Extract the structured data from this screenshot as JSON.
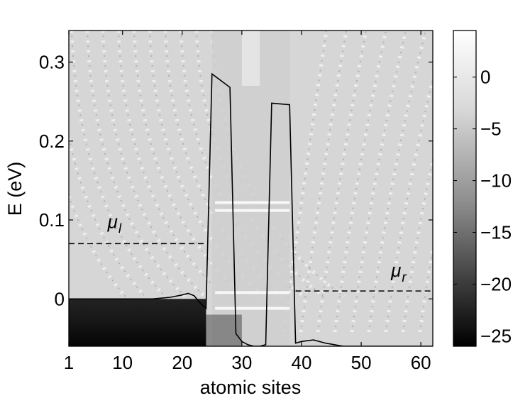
{
  "chart_data": {
    "type": "heatmap",
    "xlabel": "atomic sites",
    "ylabel": "E (eV)",
    "xlim": [
      1,
      62
    ],
    "ylim": [
      -0.06,
      0.34
    ],
    "x_ticks": [
      1,
      10,
      20,
      30,
      40,
      50,
      60
    ],
    "y_ticks": [
      0,
      0.1,
      0.2,
      0.3
    ],
    "y_tick_labels": [
      "0",
      "0.1",
      "0.2",
      "0.3"
    ],
    "colorbar": {
      "range": [
        -26,
        4.5
      ],
      "ticks": [
        0,
        -5,
        -10,
        -15,
        -20,
        -25
      ],
      "tick_labels": [
        "0",
        "−5",
        "−10",
        "−15",
        "−20",
        "−25"
      ],
      "colormap": "gray"
    },
    "band_profile": {
      "x": [
        1,
        5,
        10,
        15,
        18,
        20,
        21,
        22,
        23,
        24,
        25,
        28,
        29,
        30,
        31,
        32,
        33,
        34,
        35,
        38,
        39,
        40,
        42,
        44,
        47,
        50,
        62
      ],
      "y": [
        0.0,
        0.0,
        0.0,
        0.0,
        0.002,
        0.005,
        0.007,
        0.004,
        -0.005,
        -0.012,
        0.285,
        0.268,
        -0.044,
        -0.054,
        -0.058,
        -0.06,
        -0.06,
        -0.058,
        0.248,
        0.246,
        -0.056,
        -0.054,
        -0.052,
        -0.056,
        -0.06,
        -0.06,
        -0.06
      ]
    },
    "chemical_potentials": [
      {
        "label": "μ",
        "subscript": "l",
        "energy": 0.07,
        "x_range": [
          1,
          24
        ]
      },
      {
        "label": "μ",
        "subscript": "r",
        "energy": 0.01,
        "x_range": [
          39,
          62
        ]
      }
    ],
    "grid": false,
    "legend": "none"
  }
}
